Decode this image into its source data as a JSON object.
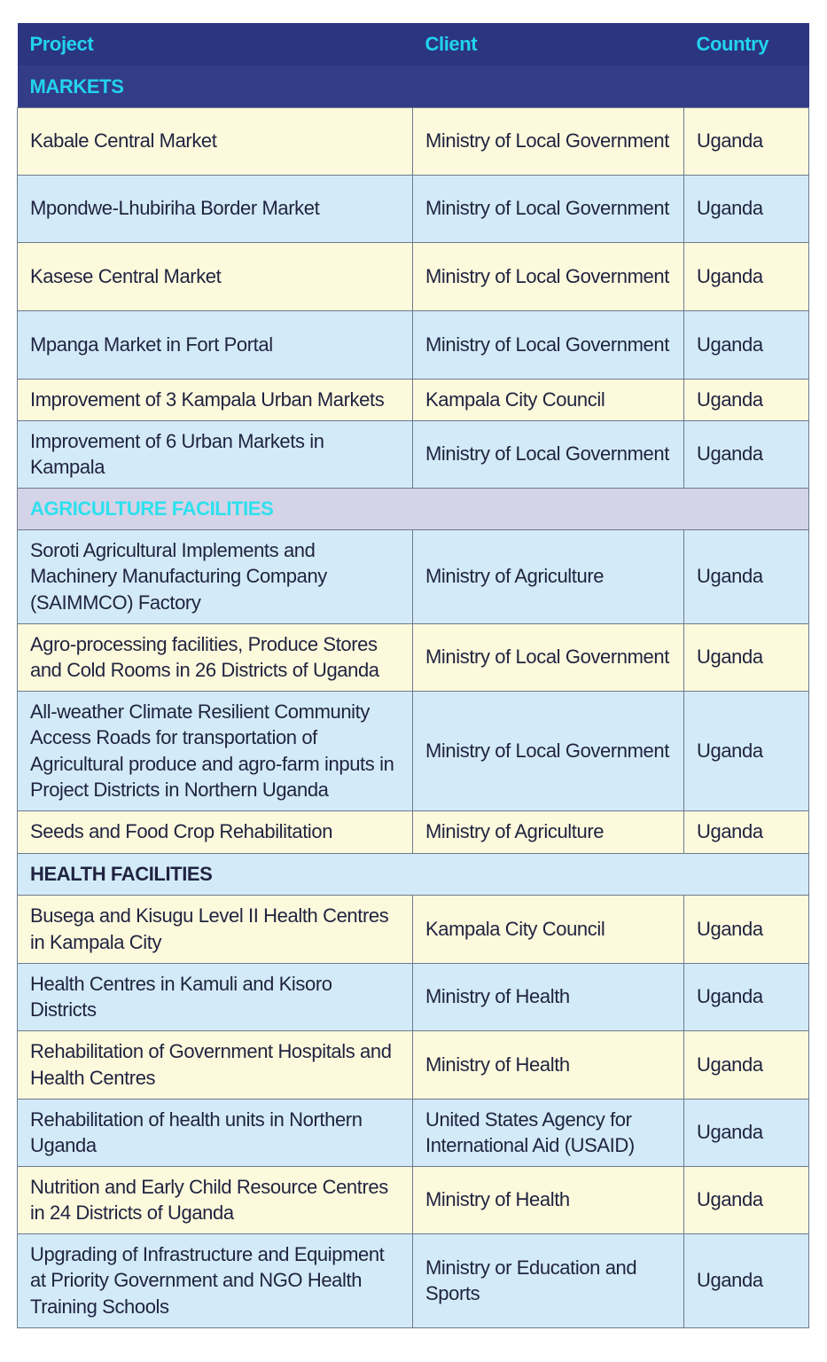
{
  "header": {
    "project": "Project",
    "client": "Client",
    "country": "Country"
  },
  "sections": [
    {
      "title": "MARKETS",
      "rows": [
        {
          "project": "Kabale Central Market",
          "client": "Ministry of Local Government",
          "country": "Uganda"
        },
        {
          "project": "Mpondwe-Lhubiriha Border Market",
          "client": "Ministry of Local Government",
          "country": "Uganda"
        },
        {
          "project": "Kasese Central Market",
          "client": "Ministry of Local Government",
          "country": "Uganda"
        },
        {
          "project": "Mpanga Market in Fort Portal",
          "client": "Ministry of Local Government",
          "country": "Uganda"
        },
        {
          "project": "Improvement of 3 Kampala Urban Markets",
          "client": "Kampala City Council",
          "country": "Uganda"
        },
        {
          "project": "Improvement of 6 Urban Markets in Kampala",
          "client": "Ministry of Local Government",
          "country": "Uganda"
        }
      ]
    },
    {
      "title": "AGRICULTURE FACILITIES",
      "rows": [
        {
          "project": "Soroti Agricultural Implements and Machinery Manufacturing Company (SAIMMCO) Factory",
          "client": "Ministry of Agriculture",
          "country": "Uganda"
        },
        {
          "project": "Agro-processing facilities, Produce Stores and Cold Rooms in 26 Districts of Uganda",
          "client": "Ministry of Local Government",
          "country": "Uganda"
        },
        {
          "project": "All-weather Climate Resilient Community Access Roads for transportation of Agricultural produce and agro-farm inputs in Project Districts in Northern Uganda",
          "client": "Ministry of Local Government",
          "country": "Uganda"
        },
        {
          "project": "Seeds and Food Crop Rehabilitation",
          "client": "Ministry of Agriculture",
          "country": "Uganda"
        }
      ]
    },
    {
      "title": "HEALTH FACILITIES",
      "rows": [
        {
          "project": "Busega and Kisugu Level II  Health Centres in Kampala City",
          "client": "Kampala City Council",
          "country": "Uganda"
        },
        {
          "project": "Health Centres in Kamuli and Kisoro Districts",
          "client": "Ministry of Health",
          "country": "Uganda"
        },
        {
          "project": "Rehabilitation of Government Hospitals and Health Centres",
          "client": "Ministry of Health",
          "country": "Uganda"
        },
        {
          "project": "Rehabilitation of health units in Northern Uganda",
          "client": "United States Agency for International Aid (USAID)",
          "country": "Uganda"
        },
        {
          "project": "Nutrition and Early Child Resource Centres in 24 Districts of Uganda",
          "client": "Ministry of Health",
          "country": "Uganda"
        },
        {
          "project": "Upgrading of Infrastructure and Equipment at Priority Government and NGO Health Training Schools",
          "client": "Ministry or Education and Sports",
          "country": "Uganda"
        }
      ]
    }
  ]
}
